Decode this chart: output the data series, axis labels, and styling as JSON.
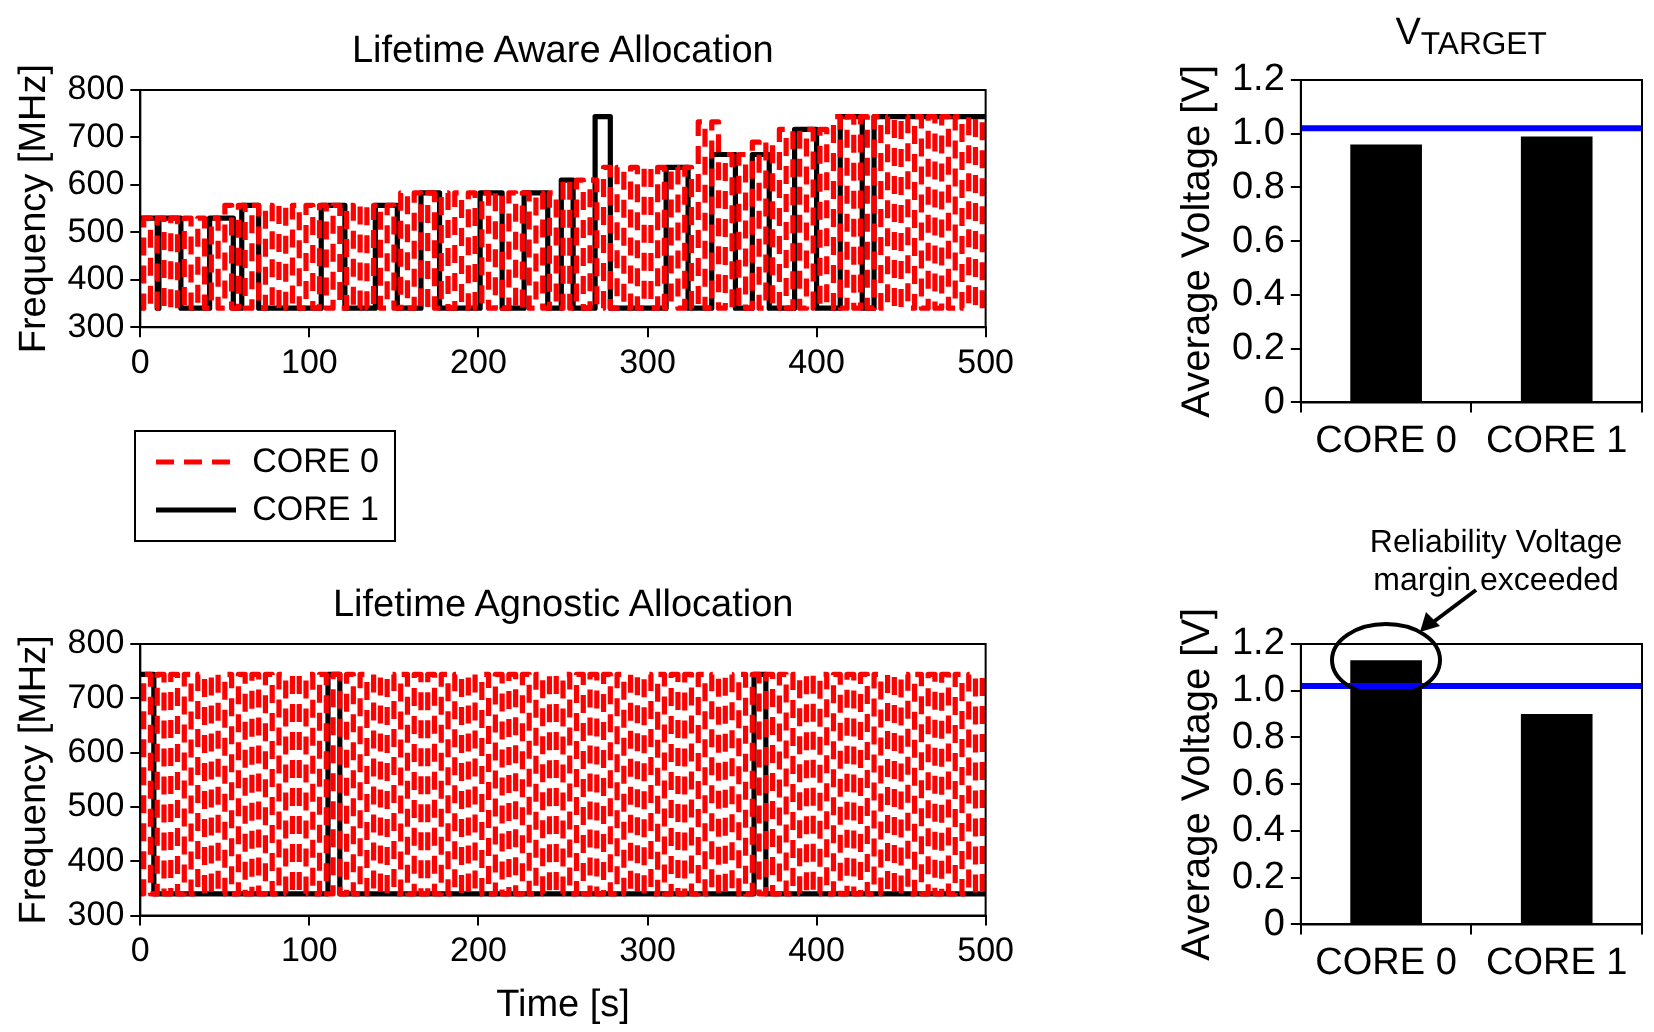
{
  "chart_data": [
    {
      "type": "step",
      "title": "Lifetime Aware Allocation",
      "ylabel": "Frequency [MHz]",
      "xlim": [
        0,
        500
      ],
      "ylim": [
        300,
        800
      ],
      "xticks": [
        0,
        100,
        200,
        300,
        400,
        500
      ],
      "yticks": [
        300,
        400,
        500,
        600,
        700,
        800
      ],
      "legend": "bottom left",
      "marker": "none",
      "series": [
        {
          "name": "CORE 0",
          "color": "#ff0000",
          "line_style": "dashed",
          "x": [
            0,
            2,
            6,
            10,
            14,
            18,
            22,
            26,
            30,
            34,
            38,
            42,
            46,
            50,
            54,
            58,
            62,
            66,
            70,
            74,
            78,
            82,
            86,
            90,
            94,
            98,
            102,
            106,
            110,
            114,
            118,
            122,
            126,
            130,
            134,
            138,
            142,
            146,
            150,
            154,
            158,
            162,
            166,
            170,
            174,
            178,
            182,
            186,
            190,
            194,
            198,
            202,
            206,
            210,
            214,
            218,
            222,
            226,
            230,
            234,
            238,
            242,
            246,
            250,
            254,
            258,
            262,
            266,
            270,
            274,
            278,
            282,
            286,
            290,
            294,
            298,
            302,
            306,
            310,
            314,
            318,
            322,
            326,
            330,
            334,
            338,
            342,
            346,
            350,
            354,
            358,
            362,
            366,
            370,
            374,
            378,
            382,
            386,
            390,
            394,
            398,
            402,
            406,
            410,
            414,
            418,
            422,
            426,
            430,
            434,
            438,
            442,
            446,
            450,
            454,
            458,
            462,
            466,
            470,
            474,
            478,
            482,
            486,
            490,
            494,
            498,
            500
          ],
          "values": [
            340,
            530,
            340,
            530,
            340,
            530,
            340,
            530,
            340,
            530,
            340,
            530,
            340,
            557,
            340,
            557,
            340,
            557,
            340,
            557,
            340,
            557,
            340,
            557,
            340,
            557,
            340,
            557,
            340,
            557,
            340,
            557,
            340,
            557,
            340,
            557,
            340,
            557,
            340,
            583,
            340,
            583,
            340,
            583,
            340,
            583,
            340,
            583,
            340,
            583,
            340,
            583,
            340,
            583,
            340,
            583,
            340,
            583,
            340,
            583,
            340,
            583,
            340,
            610,
            340,
            610,
            340,
            610,
            340,
            637,
            340,
            637,
            340,
            637,
            340,
            637,
            340,
            637,
            340,
            637,
            340,
            637,
            340,
            733,
            340,
            733,
            340,
            664,
            340,
            664,
            340,
            690,
            340,
            690,
            340,
            717,
            340,
            717,
            340,
            717,
            340,
            717,
            340,
            744,
            340,
            744,
            340,
            744,
            340,
            744,
            340,
            744,
            340,
            744,
            340,
            744,
            340,
            744,
            340,
            744,
            340,
            744,
            340,
            744,
            340,
            744,
            744
          ]
        },
        {
          "name": "CORE 1",
          "color": "#000000",
          "line_style": "solid",
          "x": [
            0,
            10,
            11,
            24,
            41,
            55,
            60,
            70,
            107,
            121,
            139,
            152,
            166,
            177,
            201,
            214,
            227,
            241,
            249,
            256,
            269,
            278,
            311,
            324,
            338,
            352,
            362,
            372,
            387,
            400,
            414,
            427,
            434,
            500
          ],
          "values": [
            530,
            340,
            530,
            340,
            530,
            340,
            557,
            340,
            557,
            340,
            557,
            340,
            583,
            340,
            583,
            340,
            583,
            340,
            610,
            340,
            744,
            340,
            637,
            340,
            664,
            340,
            664,
            340,
            717,
            340,
            744,
            340,
            744,
            744
          ]
        }
      ]
    },
    {
      "type": "bar",
      "categories": [
        "CORE 0",
        "CORE 1"
      ],
      "values": [
        0.96,
        0.99
      ],
      "color": "#000000",
      "ylabel": "Average Voltage [V]",
      "ylim": [
        0,
        1.2
      ],
      "yticks": [
        0,
        0.2,
        0.4,
        0.6,
        0.8,
        {
          "value": 1,
          "label": "1.0"
        },
        1.2
      ],
      "ref_lines": [
        {
          "axis": "y",
          "value": 1.02,
          "label": "V$_{TARGET}$",
          "color": "#0000ff"
        }
      ]
    },
    {
      "type": "step",
      "title": "Lifetime Agnostic Allocation",
      "xlabel": "Time [s]",
      "ylabel": "Frequency [MHz]",
      "xlim": [
        0,
        500
      ],
      "ylim": [
        300,
        800
      ],
      "xticks": [
        0,
        100,
        200,
        300,
        400,
        500
      ],
      "yticks": [
        300,
        400,
        500,
        600,
        700,
        800
      ],
      "marker": "none",
      "series": [
        {
          "color": "#ff0000",
          "line_style": "dashed",
          "x": [
            0,
            2,
            6,
            10,
            14,
            18,
            22,
            26,
            30,
            34,
            38,
            42,
            46,
            50,
            54,
            58,
            62,
            66,
            70,
            74,
            78,
            82,
            86,
            90,
            94,
            98,
            102,
            106,
            110,
            114,
            118,
            122,
            126,
            130,
            134,
            138,
            142,
            146,
            150,
            154,
            158,
            162,
            166,
            170,
            174,
            178,
            182,
            186,
            190,
            194,
            198,
            202,
            206,
            210,
            214,
            218,
            222,
            226,
            230,
            234,
            238,
            242,
            246,
            250,
            254,
            258,
            262,
            266,
            270,
            274,
            278,
            282,
            286,
            290,
            294,
            298,
            302,
            306,
            310,
            314,
            318,
            322,
            326,
            330,
            334,
            338,
            342,
            346,
            350,
            354,
            358,
            362,
            366,
            370,
            374,
            378,
            382,
            386,
            390,
            394,
            398,
            402,
            406,
            410,
            414,
            418,
            422,
            426,
            430,
            434,
            438,
            442,
            446,
            450,
            454,
            458,
            462,
            466,
            470,
            474,
            478,
            482,
            486,
            490,
            494,
            498,
            500
          ],
          "values": [
            340,
            744,
            340,
            744,
            340,
            744,
            340,
            744,
            340,
            744,
            340,
            744,
            340,
            744,
            340,
            744,
            340,
            744,
            340,
            744,
            340,
            744,
            340,
            744,
            340,
            744,
            340,
            744,
            340,
            744,
            340,
            744,
            340,
            744,
            340,
            744,
            340,
            744,
            340,
            744,
            340,
            744,
            340,
            744,
            340,
            744,
            340,
            744,
            340,
            744,
            340,
            744,
            340,
            744,
            340,
            744,
            340,
            744,
            340,
            744,
            340,
            744,
            340,
            744,
            340,
            744,
            340,
            744,
            340,
            744,
            340,
            744,
            340,
            744,
            340,
            744,
            340,
            744,
            340,
            744,
            340,
            744,
            340,
            744,
            340,
            744,
            340,
            744,
            340,
            744,
            340,
            744,
            340,
            744,
            340,
            744,
            340,
            744,
            340,
            744,
            340,
            744,
            340,
            744,
            340,
            744,
            340,
            744,
            340,
            744,
            340,
            744,
            340,
            744,
            340,
            744,
            340,
            744,
            340,
            744,
            340,
            744,
            340,
            744,
            340,
            744,
            744
          ]
        },
        {
          "color": "#000000",
          "line_style": "solid",
          "x": [
            0,
            8,
            111,
            118,
            363,
            370,
            500
          ],
          "values": [
            744,
            340,
            744,
            340,
            744,
            340,
            340
          ]
        }
      ]
    },
    {
      "type": "bar",
      "categories": [
        "CORE 0",
        "CORE 1"
      ],
      "values": [
        1.13,
        0.9
      ],
      "color": "#000000",
      "ylabel": "Average Voltage [V]",
      "ylim": [
        0,
        1.2
      ],
      "yticks": [
        0,
        0.2,
        0.4,
        0.6,
        0.8,
        {
          "value": 1,
          "label": "1.0"
        },
        1.2
      ],
      "ref_lines": [
        {
          "axis": "y",
          "value": 1.02,
          "color": "#0000ff"
        }
      ],
      "annotations": [
        {
          "text": "Reliability Voltage margin exceeded",
          "x": "CORE 0",
          "y": 1.13
        }
      ]
    }
  ]
}
